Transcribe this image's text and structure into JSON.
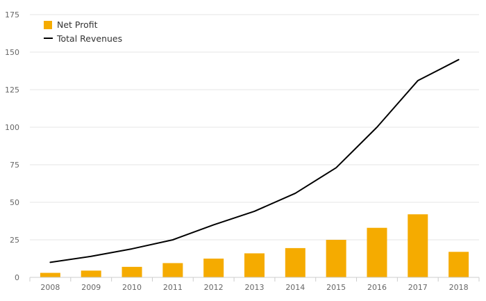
{
  "chart_data": {
    "type": "bar",
    "categories": [
      "2008",
      "2009",
      "2010",
      "2011",
      "2012",
      "2013",
      "2014",
      "2015",
      "2016",
      "2017",
      "2018"
    ],
    "series": [
      {
        "name": "Net Profit",
        "kind": "bar",
        "color": "#f5ab00",
        "values": [
          3,
          4.5,
          7,
          9.5,
          12.5,
          16,
          19.5,
          25,
          33,
          42,
          17
        ]
      },
      {
        "name": "Total Revenues",
        "kind": "line",
        "color": "#000000",
        "values": [
          10,
          14,
          19,
          25,
          35,
          44,
          56,
          73,
          100,
          131,
          145
        ]
      }
    ],
    "ylim": [
      0,
      175
    ],
    "yticks": [
      0,
      25,
      50,
      75,
      100,
      125,
      150,
      175
    ],
    "grid": true,
    "legend_position": "top-left",
    "title": "",
    "xlabel": "",
    "ylabel": ""
  }
}
